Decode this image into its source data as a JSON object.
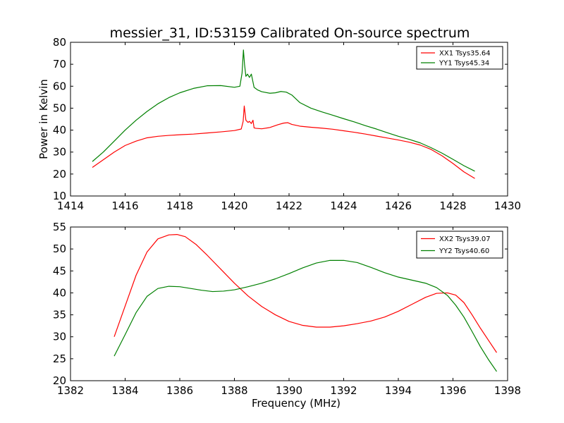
{
  "figure": {
    "title": "messier_31, ID:53159 Calibrated On-source spectrum"
  },
  "chart_data": [
    {
      "type": "line",
      "title": "messier_31, ID:53159 Calibrated On-source spectrum",
      "xlabel": "",
      "ylabel": "Power in Kelvin",
      "xlim": [
        1414,
        1430
      ],
      "ylim": [
        10,
        80
      ],
      "xticks": [
        "1414",
        "1416",
        "1418",
        "1420",
        "1422",
        "1424",
        "1426",
        "1428",
        "1430"
      ],
      "yticks": [
        "10",
        "20",
        "30",
        "40",
        "50",
        "60",
        "70",
        "80"
      ],
      "grid": false,
      "legend_position": "top-right",
      "series": [
        {
          "name": "XX1 Tsys35.64",
          "color": "#ff0000",
          "x": [
            1414.8,
            1415.2,
            1415.6,
            1416.0,
            1416.4,
            1416.8,
            1417.2,
            1417.6,
            1418.0,
            1418.5,
            1419.0,
            1419.5,
            1420.0,
            1420.25,
            1420.32,
            1420.36,
            1420.42,
            1420.5,
            1420.55,
            1420.62,
            1420.68,
            1420.72,
            1420.8,
            1421.0,
            1421.3,
            1421.6,
            1421.8,
            1421.95,
            1422.1,
            1422.4,
            1422.8,
            1423.2,
            1423.6,
            1424.0,
            1424.4,
            1424.8,
            1425.2,
            1425.6,
            1426.0,
            1426.4,
            1426.8,
            1427.2,
            1427.6,
            1428.0,
            1428.4,
            1428.8
          ],
          "y": [
            23.0,
            26.5,
            30.0,
            33.0,
            35.0,
            36.5,
            37.2,
            37.6,
            37.9,
            38.2,
            38.7,
            39.2,
            39.8,
            40.5,
            44.0,
            51.0,
            44.5,
            43.5,
            44.0,
            43.0,
            44.5,
            41.0,
            40.8,
            40.6,
            41.2,
            42.5,
            43.2,
            43.4,
            42.6,
            41.8,
            41.3,
            40.9,
            40.4,
            39.7,
            39.0,
            38.2,
            37.3,
            36.4,
            35.5,
            34.5,
            33.2,
            31.2,
            28.3,
            24.8,
            21.0,
            18.0
          ]
        },
        {
          "name": "YY1 Tsys45.34",
          "color": "#008000",
          "x": [
            1414.8,
            1415.2,
            1415.6,
            1416.0,
            1416.4,
            1416.8,
            1417.2,
            1417.6,
            1418.0,
            1418.5,
            1419.0,
            1419.5,
            1420.0,
            1420.2,
            1420.28,
            1420.33,
            1420.37,
            1420.42,
            1420.48,
            1420.55,
            1420.62,
            1420.72,
            1420.85,
            1421.0,
            1421.3,
            1421.5,
            1421.7,
            1421.9,
            1422.1,
            1422.4,
            1422.8,
            1423.2,
            1423.6,
            1424.0,
            1424.4,
            1424.8,
            1425.2,
            1425.6,
            1426.0,
            1426.4,
            1426.8,
            1427.2,
            1427.6,
            1428.0,
            1428.4,
            1428.8
          ],
          "y": [
            25.7,
            30.0,
            35.0,
            40.0,
            44.5,
            48.5,
            52.0,
            54.8,
            57.0,
            59.0,
            60.2,
            60.3,
            59.5,
            60.0,
            66.0,
            76.5,
            70.0,
            64.5,
            65.5,
            64.0,
            65.5,
            59.5,
            58.3,
            57.5,
            56.8,
            57.0,
            57.6,
            57.3,
            56.0,
            52.5,
            50.0,
            48.3,
            46.8,
            45.2,
            43.7,
            42.0,
            40.5,
            38.8,
            37.2,
            35.8,
            34.2,
            32.0,
            29.5,
            26.7,
            23.8,
            21.3
          ]
        }
      ]
    },
    {
      "type": "line",
      "title": "",
      "xlabel": "Frequency (MHz)",
      "ylabel": "",
      "xlim": [
        1382,
        1398
      ],
      "ylim": [
        20,
        55
      ],
      "xticks": [
        "1382",
        "1384",
        "1386",
        "1388",
        "1390",
        "1392",
        "1394",
        "1396",
        "1398"
      ],
      "yticks": [
        "20",
        "25",
        "30",
        "35",
        "40",
        "45",
        "50",
        "55"
      ],
      "grid": false,
      "legend_position": "top-right",
      "series": [
        {
          "name": "XX2 Tsys39.07",
          "color": "#ff0000",
          "x": [
            1383.6,
            1384.0,
            1384.4,
            1384.8,
            1385.2,
            1385.6,
            1385.9,
            1386.2,
            1386.6,
            1387.0,
            1387.5,
            1388.0,
            1388.5,
            1389.0,
            1389.5,
            1390.0,
            1390.5,
            1391.0,
            1391.5,
            1392.0,
            1392.5,
            1393.0,
            1393.5,
            1394.0,
            1394.5,
            1395.0,
            1395.4,
            1395.8,
            1396.1,
            1396.4,
            1396.7,
            1397.0,
            1397.3,
            1397.6
          ],
          "y": [
            30.0,
            37.0,
            44.0,
            49.3,
            52.3,
            53.2,
            53.3,
            52.8,
            51.0,
            48.6,
            45.4,
            42.2,
            39.3,
            36.9,
            35.0,
            33.5,
            32.6,
            32.2,
            32.2,
            32.5,
            33.0,
            33.6,
            34.5,
            35.8,
            37.4,
            39.0,
            39.9,
            40.0,
            39.5,
            37.8,
            35.0,
            32.0,
            29.2,
            26.4
          ]
        },
        {
          "name": "YY2 Tsys40.60",
          "color": "#008000",
          "x": [
            1383.6,
            1384.0,
            1384.4,
            1384.8,
            1385.2,
            1385.6,
            1386.0,
            1386.4,
            1386.8,
            1387.2,
            1387.6,
            1388.0,
            1388.5,
            1389.0,
            1389.5,
            1390.0,
            1390.5,
            1391.0,
            1391.5,
            1392.0,
            1392.5,
            1393.0,
            1393.5,
            1394.0,
            1394.5,
            1395.0,
            1395.4,
            1395.8,
            1396.1,
            1396.4,
            1396.7,
            1397.0,
            1397.3,
            1397.6
          ],
          "y": [
            25.6,
            30.5,
            35.5,
            39.2,
            41.0,
            41.5,
            41.4,
            41.0,
            40.6,
            40.3,
            40.4,
            40.7,
            41.4,
            42.2,
            43.2,
            44.4,
            45.7,
            46.8,
            47.4,
            47.4,
            46.9,
            45.8,
            44.6,
            43.6,
            42.9,
            42.2,
            41.2,
            39.4,
            37.2,
            34.5,
            31.2,
            27.8,
            24.8,
            22.1
          ]
        }
      ]
    }
  ]
}
